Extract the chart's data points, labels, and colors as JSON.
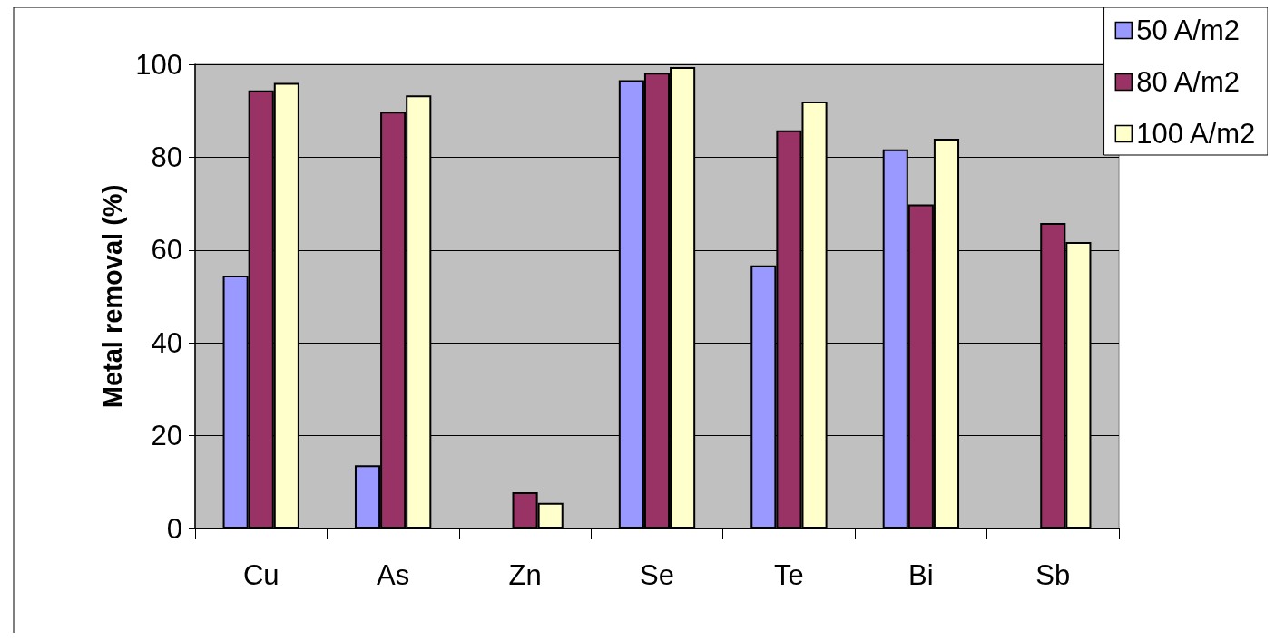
{
  "chart_data": {
    "type": "bar",
    "ylabel": "Metal removal (%)",
    "categories": [
      "Cu",
      "As",
      "Zn",
      "Se",
      "Te",
      "Bi",
      "Sb"
    ],
    "series": [
      {
        "name": "50 A/m2",
        "color": "#9999ff",
        "values": [
          54.5,
          13.6,
          null,
          96.6,
          56.7,
          81.7,
          null
        ]
      },
      {
        "name": "80 A/m2",
        "color": "#993366",
        "values": [
          94.4,
          89.8,
          7.8,
          98.2,
          85.8,
          69.8,
          65.8
        ]
      },
      {
        "name": "100 A/m2",
        "color": "#ffffcc",
        "values": [
          96,
          93.3,
          5.5,
          99.4,
          92,
          84,
          61.7
        ]
      }
    ],
    "ylim": [
      0,
      100
    ],
    "yticks": [
      0,
      20,
      40,
      60,
      80,
      100
    ],
    "grid": "y",
    "legend": "top right"
  }
}
